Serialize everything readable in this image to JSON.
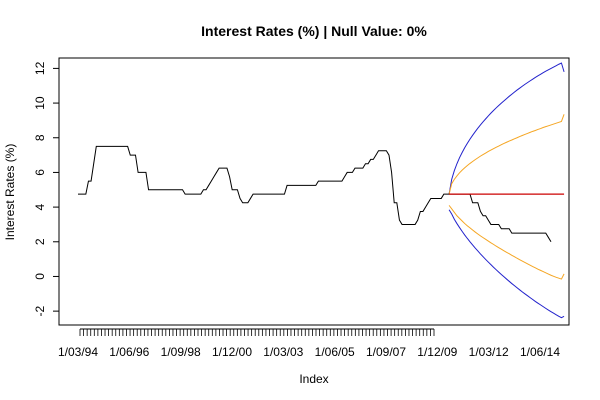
{
  "chart_data": {
    "type": "line",
    "title": "Interest Rates (%) | Null Value: 0%",
    "xlabel": "Index",
    "ylabel": "Interest Rates (%)",
    "ylim": [
      -2.8,
      12.6
    ],
    "y_ticks": [
      -2,
      0,
      2,
      4,
      6,
      8,
      10,
      12
    ],
    "x_tick_labels": [
      "1/03/94",
      "1/06/96",
      "1/09/98",
      "1/12/00",
      "1/03/03",
      "1/06/05",
      "1/09/07",
      "1/12/09",
      "1/03/12",
      "1/06/14"
    ],
    "x_tick_count_dense": 100,
    "grid": false,
    "colors": {
      "history": "#000000",
      "forecast_mean": "#cc0000",
      "inner_band": "#f5a623",
      "outer_band": "#2222cc"
    },
    "series": [
      {
        "values": [
          4.75,
          4.75,
          4.75,
          4.75,
          5.5,
          5.5,
          6.5,
          7.5,
          7.5,
          7.5,
          7.5,
          7.5,
          7.5,
          7.5,
          7.5,
          7.5,
          7.5,
          7.5,
          7.5,
          7.5,
          7.0,
          7.0,
          7.0,
          6.0,
          6.0,
          6.0,
          6.0,
          5.0,
          5.0,
          5.0,
          5.0,
          5.0,
          5.0,
          5.0,
          5.0,
          5.0,
          5.0,
          5.0,
          5.0,
          5.0,
          5.0,
          4.75,
          4.75,
          4.75,
          4.75,
          4.75,
          4.75,
          4.75,
          5.0,
          5.0,
          5.25,
          5.5,
          5.75,
          6.0,
          6.25,
          6.25,
          6.25,
          6.25,
          5.75,
          5.0,
          5.0,
          5.0,
          4.5,
          4.25,
          4.25,
          4.25,
          4.5,
          4.75,
          4.75,
          4.75,
          4.75,
          4.75,
          4.75,
          4.75,
          4.75,
          4.75,
          4.75,
          4.75,
          4.75,
          4.75,
          5.25,
          5.25,
          5.25,
          5.25,
          5.25,
          5.25,
          5.25,
          5.25,
          5.25,
          5.25,
          5.25,
          5.25,
          5.5,
          5.5,
          5.5,
          5.5,
          5.5,
          5.5,
          5.5,
          5.5,
          5.5,
          5.5,
          5.75,
          6.0,
          6.0,
          6.0,
          6.25,
          6.25,
          6.25,
          6.25,
          6.5,
          6.5,
          6.75,
          6.75,
          7.0,
          7.25,
          7.25,
          7.25,
          7.25,
          7.0,
          6.0,
          4.25,
          4.25,
          3.25,
          3.0,
          3.0,
          3.0,
          3.0,
          3.0,
          3.0,
          3.25,
          3.75,
          3.75,
          4.0,
          4.25,
          4.5,
          4.5,
          4.5,
          4.5,
          4.5,
          4.75,
          4.75,
          4.75,
          4.75,
          4.75,
          4.75,
          4.75,
          4.75,
          4.75,
          4.75,
          4.75,
          4.25,
          4.25,
          4.25,
          3.75,
          3.5,
          3.5,
          3.25,
          3.0,
          3.0,
          3.0,
          3.0,
          2.75,
          2.75,
          2.75,
          2.75,
          2.5,
          2.5,
          2.5,
          2.5,
          2.5,
          2.5,
          2.5,
          2.5,
          2.5,
          2.5,
          2.5,
          2.5,
          2.5,
          2.5,
          2.25,
          2.0
        ]
      },
      {
        "start_index": 142,
        "values": [
          4.75,
          4.75,
          4.75,
          4.75,
          4.75,
          4.75,
          4.75,
          4.75,
          4.75,
          4.75,
          4.75,
          4.75,
          4.75,
          4.75,
          4.75,
          4.75,
          4.75,
          4.75,
          4.75,
          4.75,
          4.75,
          4.75,
          4.75,
          4.75,
          4.75,
          4.75,
          4.75,
          4.75,
          4.75,
          4.75,
          4.75,
          4.75,
          4.75,
          4.75,
          4.75,
          4.75,
          4.75,
          4.75,
          4.75,
          4.75,
          4.75,
          4.75,
          4.75,
          4.75,
          4.75
        ]
      },
      {
        "start_index": 142,
        "upper": [
          4.75,
          5.35,
          5.6,
          5.8,
          5.98,
          6.13,
          6.27,
          6.4,
          6.52,
          6.63,
          6.74,
          6.84,
          6.94,
          7.03,
          7.12,
          7.21,
          7.29,
          7.37,
          7.45,
          7.52,
          7.6,
          7.67,
          7.74,
          7.81,
          7.87,
          7.94,
          8.0,
          8.07,
          8.13,
          8.19,
          8.25,
          8.31,
          8.37,
          8.42,
          8.48,
          8.53,
          8.59,
          8.64,
          8.69,
          8.74,
          8.79,
          8.84,
          8.89,
          8.94,
          9.35
        ],
        "lower": [
          4.1,
          3.9,
          3.7,
          3.5,
          3.35,
          3.2,
          3.05,
          2.92,
          2.8,
          2.68,
          2.56,
          2.45,
          2.34,
          2.24,
          2.14,
          2.04,
          1.94,
          1.85,
          1.75,
          1.66,
          1.57,
          1.48,
          1.39,
          1.31,
          1.22,
          1.14,
          1.05,
          0.97,
          0.89,
          0.81,
          0.73,
          0.65,
          0.57,
          0.5,
          0.42,
          0.35,
          0.28,
          0.21,
          0.14,
          0.07,
          0.01,
          -0.05,
          -0.1,
          -0.15,
          0.15
        ]
      },
      {
        "start_index": 142,
        "upper": [
          4.75,
          5.6,
          6.1,
          6.5,
          6.85,
          7.15,
          7.43,
          7.68,
          7.92,
          8.14,
          8.35,
          8.55,
          8.74,
          8.92,
          9.09,
          9.26,
          9.42,
          9.57,
          9.72,
          9.86,
          10.0,
          10.13,
          10.26,
          10.39,
          10.51,
          10.63,
          10.75,
          10.86,
          10.97,
          11.08,
          11.18,
          11.28,
          11.38,
          11.48,
          11.57,
          11.66,
          11.75,
          11.84,
          11.92,
          12.0,
          12.08,
          12.16,
          12.24,
          12.31,
          11.8
        ],
        "lower": [
          3.85,
          3.6,
          3.3,
          3.05,
          2.82,
          2.6,
          2.39,
          2.19,
          2.0,
          1.82,
          1.64,
          1.47,
          1.3,
          1.14,
          0.98,
          0.83,
          0.68,
          0.53,
          0.39,
          0.25,
          0.11,
          -0.02,
          -0.15,
          -0.28,
          -0.41,
          -0.53,
          -0.65,
          -0.77,
          -0.89,
          -1.0,
          -1.11,
          -1.22,
          -1.33,
          -1.44,
          -1.54,
          -1.64,
          -1.74,
          -1.84,
          -1.94,
          -2.03,
          -2.12,
          -2.21,
          -2.3,
          -2.38,
          -2.3
        ]
      }
    ]
  }
}
